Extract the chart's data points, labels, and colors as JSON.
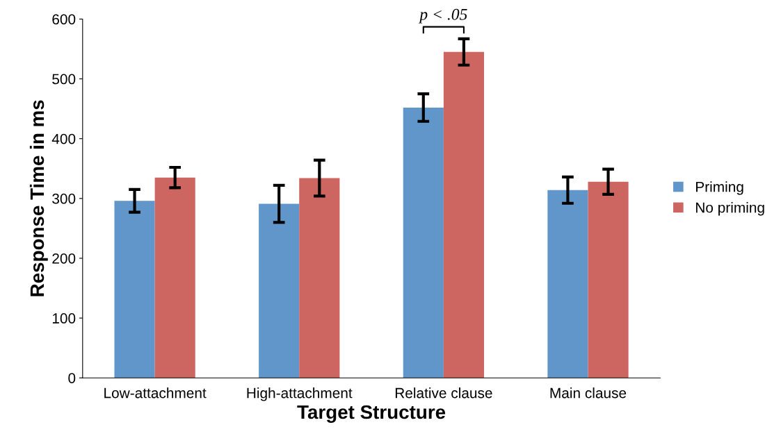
{
  "chart_data": {
    "type": "bar",
    "xlabel": "Target Structure",
    "ylabel": "Response Time in ms",
    "categories": [
      "Low-attachment",
      "High-attachment",
      "Relative clause",
      "Main clause"
    ],
    "series": [
      {
        "name": "Priming",
        "color": "#6096c9",
        "values": [
          296,
          291,
          452,
          314
        ],
        "errors": [
          19,
          31,
          23,
          22
        ]
      },
      {
        "name": "No priming",
        "color": "#cd6560",
        "values": [
          335,
          334,
          545,
          328
        ],
        "errors": [
          17,
          30,
          22,
          21
        ]
      }
    ],
    "ylim": [
      0,
      600
    ],
    "yticks": [
      0,
      100,
      200,
      300,
      400,
      500,
      600
    ],
    "grid": false,
    "legend": "right",
    "annotations": [
      "p < .05"
    ]
  }
}
